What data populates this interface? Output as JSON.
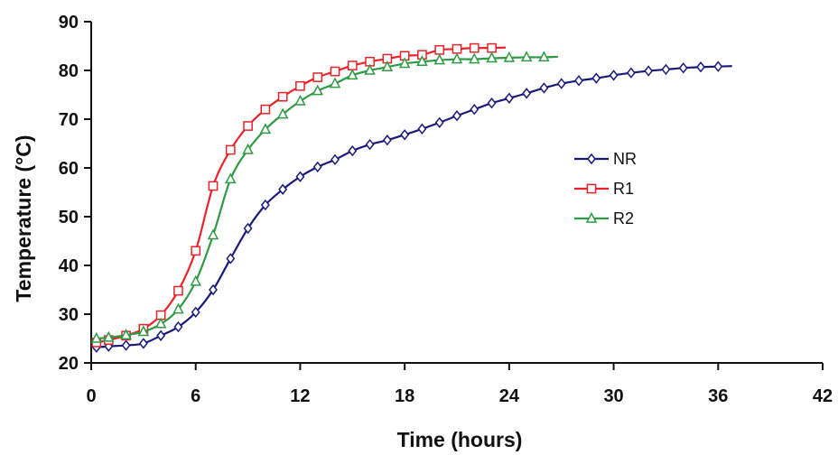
{
  "chart_data": {
    "type": "line",
    "xlabel": "Time (hours)",
    "ylabel": "Temperature (°C)",
    "xlim": [
      0,
      42
    ],
    "ylim": [
      20,
      90
    ],
    "xticks": [
      0,
      6,
      12,
      18,
      24,
      30,
      36,
      42
    ],
    "yticks": [
      20,
      30,
      40,
      50,
      60,
      70,
      80,
      90
    ],
    "grid": false,
    "legend_position": "right-center",
    "series": [
      {
        "name": "NR",
        "color": "#1a1a7a",
        "marker": "diamond",
        "x": [
          0.3,
          1,
          2,
          3,
          4,
          5,
          6,
          7,
          8,
          9,
          10,
          11,
          12,
          13,
          14,
          15,
          16,
          17,
          18,
          19,
          20,
          21,
          22,
          23,
          24,
          25,
          26,
          27,
          28,
          29,
          30,
          31,
          32,
          33,
          34,
          35,
          36
        ],
        "y": [
          23.2,
          23.4,
          23.6,
          24.0,
          25.6,
          27.4,
          30.4,
          35.0,
          41.4,
          47.6,
          52.4,
          55.6,
          58.2,
          60.2,
          61.7,
          63.5,
          64.8,
          65.7,
          66.8,
          68.0,
          69.3,
          70.7,
          72.0,
          73.3,
          74.3,
          75.3,
          76.4,
          77.3,
          77.9,
          78.4,
          79.0,
          79.5,
          79.9,
          80.2,
          80.5,
          80.7,
          80.8
        ]
      },
      {
        "name": "R1",
        "color": "#e8242a",
        "marker": "square",
        "x": [
          0.3,
          1,
          2,
          3,
          4,
          5,
          6,
          7,
          8,
          9,
          10,
          11,
          12,
          13,
          14,
          15,
          16,
          17,
          18,
          19,
          20,
          21,
          22,
          23
        ],
        "y": [
          24.2,
          24.7,
          25.6,
          27.0,
          29.8,
          34.8,
          43.0,
          56.3,
          63.7,
          68.6,
          72.0,
          74.6,
          76.8,
          78.6,
          79.8,
          81.0,
          81.8,
          82.4,
          83.0,
          83.2,
          84.2,
          84.4,
          84.6,
          84.6
        ]
      },
      {
        "name": "R2",
        "color": "#2e9a44",
        "marker": "triangle",
        "x": [
          0.3,
          1,
          2,
          3,
          4,
          5,
          6,
          7,
          8,
          9,
          10,
          11,
          12,
          13,
          14,
          15,
          16,
          17,
          18,
          19,
          20,
          21,
          22,
          23,
          24,
          25,
          26
        ],
        "y": [
          25.0,
          25.2,
          25.7,
          26.4,
          28.0,
          31.0,
          36.7,
          46.2,
          57.7,
          63.7,
          67.9,
          71.0,
          73.7,
          75.8,
          77.3,
          79.0,
          80.0,
          80.7,
          81.4,
          81.8,
          82.1,
          82.3,
          82.3,
          82.5,
          82.6,
          82.7,
          82.7
        ]
      }
    ]
  }
}
